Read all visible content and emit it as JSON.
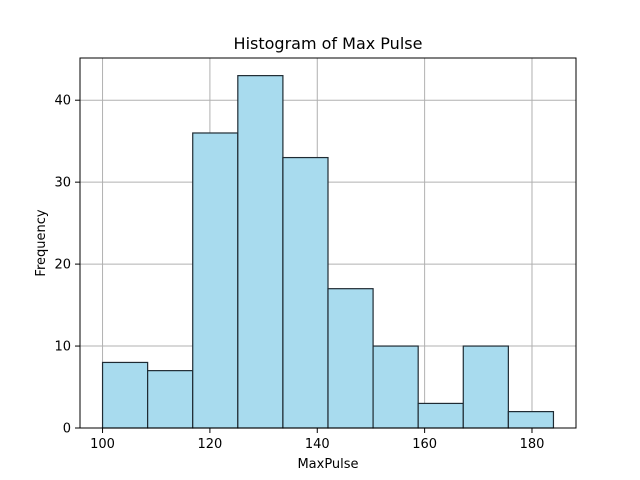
{
  "chart_data": {
    "type": "bar",
    "title": "Histogram of Max Pulse",
    "xlabel": "MaxPulse",
    "ylabel": "Frequency",
    "bin_edges": [
      100,
      108.4,
      116.8,
      125.2,
      133.6,
      142,
      150.4,
      158.8,
      167.2,
      175.6,
      184
    ],
    "values": [
      8,
      7,
      36,
      43,
      33,
      17,
      10,
      3,
      10,
      2
    ],
    "xlim": [
      95.8,
      188.2
    ],
    "ylim": [
      0,
      45.15
    ],
    "xticks": [
      100,
      120,
      140,
      160,
      180
    ],
    "yticks": [
      0,
      10,
      20,
      30,
      40
    ],
    "grid": true,
    "bar_color": "#a8dbee",
    "edge_color": "#1f2b33"
  }
}
